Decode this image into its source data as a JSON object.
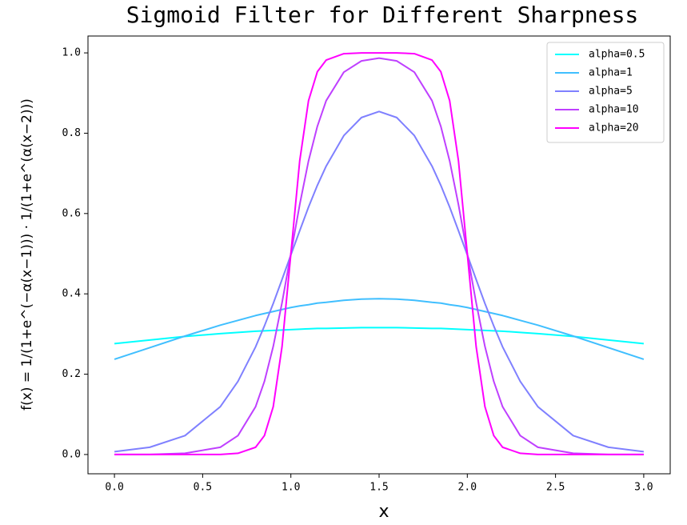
{
  "chart_data": {
    "type": "line",
    "title": "Sigmoid Filter for Different Sharpness",
    "xlabel": "x",
    "ylabel": "f(x) = 1/(1+e^(−α(x−1))) · 1/(1+e^(α(x−2)))",
    "x": [
      0,
      0.2,
      0.4,
      0.6,
      0.7,
      0.8,
      0.85,
      0.9,
      0.95,
      1.0,
      1.05,
      1.1,
      1.15,
      1.2,
      1.3,
      1.4,
      1.5,
      1.6,
      1.7,
      1.8,
      1.85,
      1.9,
      1.95,
      2.0,
      2.05,
      2.1,
      2.15,
      2.2,
      2.3,
      2.4,
      2.6,
      2.8,
      3.0
    ],
    "series": [
      {
        "name": "alpha=0.5",
        "color": "#00ffff",
        "values": [
          0.276,
          0.285,
          0.294,
          0.301,
          0.304,
          0.307,
          0.308,
          0.309,
          0.31,
          0.311,
          0.312,
          0.313,
          0.314,
          0.314,
          0.315,
          0.316,
          0.316,
          0.316,
          0.315,
          0.314,
          0.314,
          0.313,
          0.312,
          0.311,
          0.31,
          0.309,
          0.308,
          0.307,
          0.304,
          0.301,
          0.294,
          0.285,
          0.276
        ]
      },
      {
        "name": "alpha=1",
        "color": "#40bfff",
        "values": [
          0.237,
          0.266,
          0.295,
          0.322,
          0.334,
          0.346,
          0.351,
          0.356,
          0.361,
          0.366,
          0.37,
          0.373,
          0.377,
          0.379,
          0.384,
          0.387,
          0.388,
          0.387,
          0.384,
          0.379,
          0.377,
          0.373,
          0.37,
          0.366,
          0.361,
          0.356,
          0.351,
          0.346,
          0.334,
          0.322,
          0.295,
          0.266,
          0.237
        ]
      },
      {
        "name": "alpha=5",
        "color": "#7f80ff",
        "values": [
          0.007,
          0.018,
          0.047,
          0.119,
          0.182,
          0.268,
          0.32,
          0.376,
          0.436,
          0.497,
          0.557,
          0.616,
          0.67,
          0.718,
          0.794,
          0.839,
          0.854,
          0.839,
          0.794,
          0.718,
          0.67,
          0.616,
          0.557,
          0.497,
          0.436,
          0.376,
          0.32,
          0.268,
          0.182,
          0.119,
          0.047,
          0.018,
          0.007
        ]
      },
      {
        "name": "alpha=10",
        "color": "#bf40ff",
        "values": [
          0.0,
          0.0,
          0.003,
          0.018,
          0.047,
          0.119,
          0.182,
          0.269,
          0.378,
          0.5,
          0.622,
          0.731,
          0.817,
          0.881,
          0.952,
          0.98,
          0.987,
          0.98,
          0.952,
          0.881,
          0.817,
          0.731,
          0.622,
          0.5,
          0.378,
          0.269,
          0.182,
          0.119,
          0.047,
          0.018,
          0.003,
          0.0,
          0.0
        ]
      },
      {
        "name": "alpha=20",
        "color": "#ff00ff",
        "values": [
          0.0,
          0.0,
          0.0,
          0.0,
          0.003,
          0.018,
          0.047,
          0.119,
          0.269,
          0.5,
          0.731,
          0.881,
          0.953,
          0.982,
          0.998,
          1.0,
          1.0,
          1.0,
          0.998,
          0.982,
          0.953,
          0.881,
          0.731,
          0.5,
          0.269,
          0.119,
          0.047,
          0.018,
          0.003,
          0.0,
          0.0,
          0.0,
          0.0
        ]
      }
    ],
    "xlim": [
      -0.15,
      3.15
    ],
    "ylim": [
      -0.048,
      1.042
    ],
    "xticks": [
      {
        "value": 0,
        "label": "0.0"
      },
      {
        "value": 0.5,
        "label": "0.5"
      },
      {
        "value": 1,
        "label": "1.0"
      },
      {
        "value": 1.5,
        "label": "1.5"
      },
      {
        "value": 2,
        "label": "2.0"
      },
      {
        "value": 2.5,
        "label": "2.5"
      },
      {
        "value": 3,
        "label": "3.0"
      }
    ],
    "yticks": [
      {
        "value": 0,
        "label": "0.0"
      },
      {
        "value": 0.2,
        "label": "0.2"
      },
      {
        "value": 0.4,
        "label": "0.4"
      },
      {
        "value": 0.6,
        "label": "0.6"
      },
      {
        "value": 0.8,
        "label": "0.8"
      },
      {
        "value": 1,
        "label": "1.0"
      }
    ],
    "grid": false,
    "legend": "upper right"
  }
}
